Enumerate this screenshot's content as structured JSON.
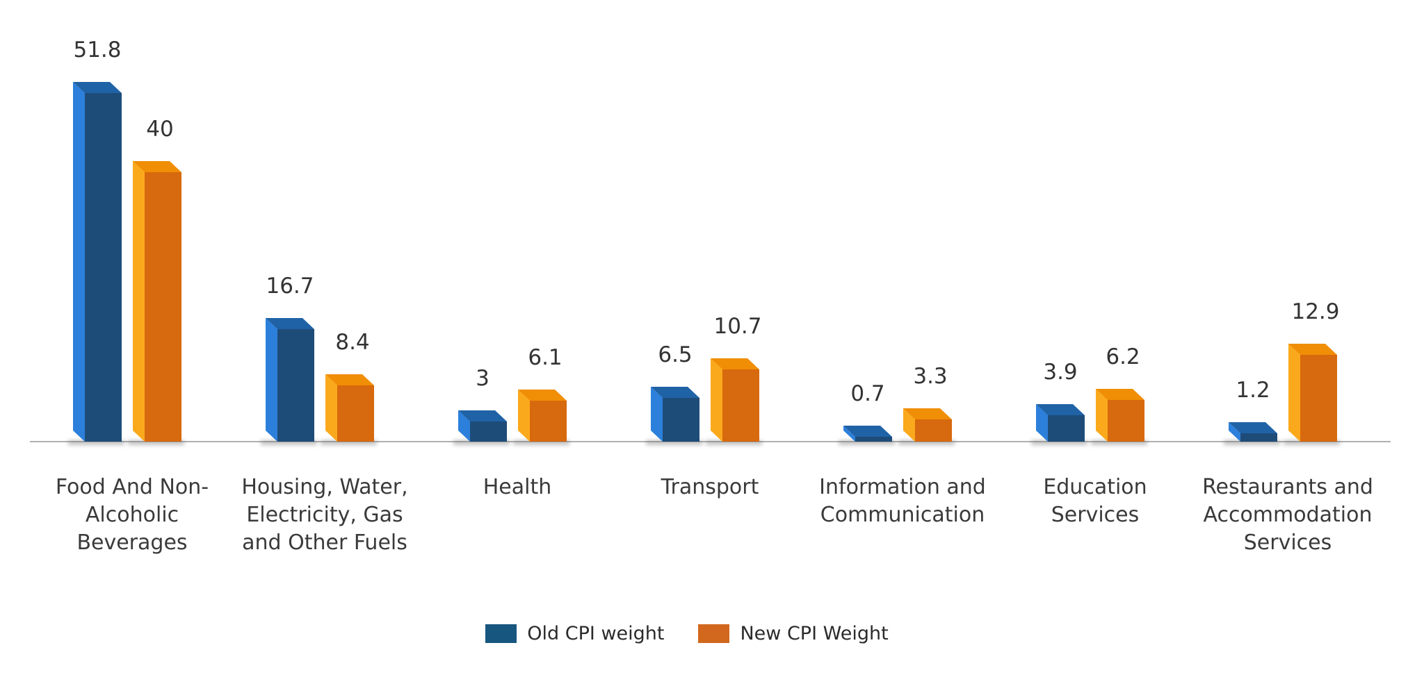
{
  "chart_data": {
    "type": "bar",
    "title": "",
    "xlabel": "",
    "ylabel": "",
    "ylim": [
      0,
      55
    ],
    "grid": false,
    "legend_position": "bottom-center",
    "axis": {
      "baseline_color": "#B0B0B0",
      "text_color": "#333333"
    },
    "categories": [
      "Food And Non-Alcoholic Beverages",
      "Housing, Water, Electricity, Gas and Other Fuels",
      "Health",
      "Transport",
      "Information and Communication",
      "Education Services",
      "Restaurants and Accommodation Services"
    ],
    "categories_display": [
      "Food And Non-\nAlcoholic\nBeverages",
      "Housing, Water,\nElectricity, Gas\nand Other Fuels",
      "Health",
      "Transport",
      "Information and\nCommunication",
      "Education\nServices",
      "Restaurants and\nAccommodation\nServices"
    ],
    "series": [
      {
        "name": "Old CPI weight",
        "values": [
          51.8,
          16.7,
          3,
          6.5,
          0.7,
          3.9,
          1.2
        ],
        "value_labels": [
          "51.8",
          "16.7",
          "3",
          "6.5",
          "0.7",
          "3.9",
          "1.2"
        ],
        "colors": {
          "front": "#1E4C78",
          "side": "#2C80DB",
          "top": "#2062A6",
          "legend": "#17567E"
        }
      },
      {
        "name": "New CPI Weight",
        "values": [
          40,
          8.4,
          6.1,
          10.7,
          3.3,
          6.2,
          12.9
        ],
        "value_labels": [
          "40",
          "8.4",
          "6.1",
          "10.7",
          "3.3",
          "6.2",
          "12.9"
        ],
        "colors": {
          "front": "#D7690E",
          "side": "#FAA91C",
          "top": "#F08E05",
          "legend": "#D2681D"
        }
      }
    ]
  }
}
